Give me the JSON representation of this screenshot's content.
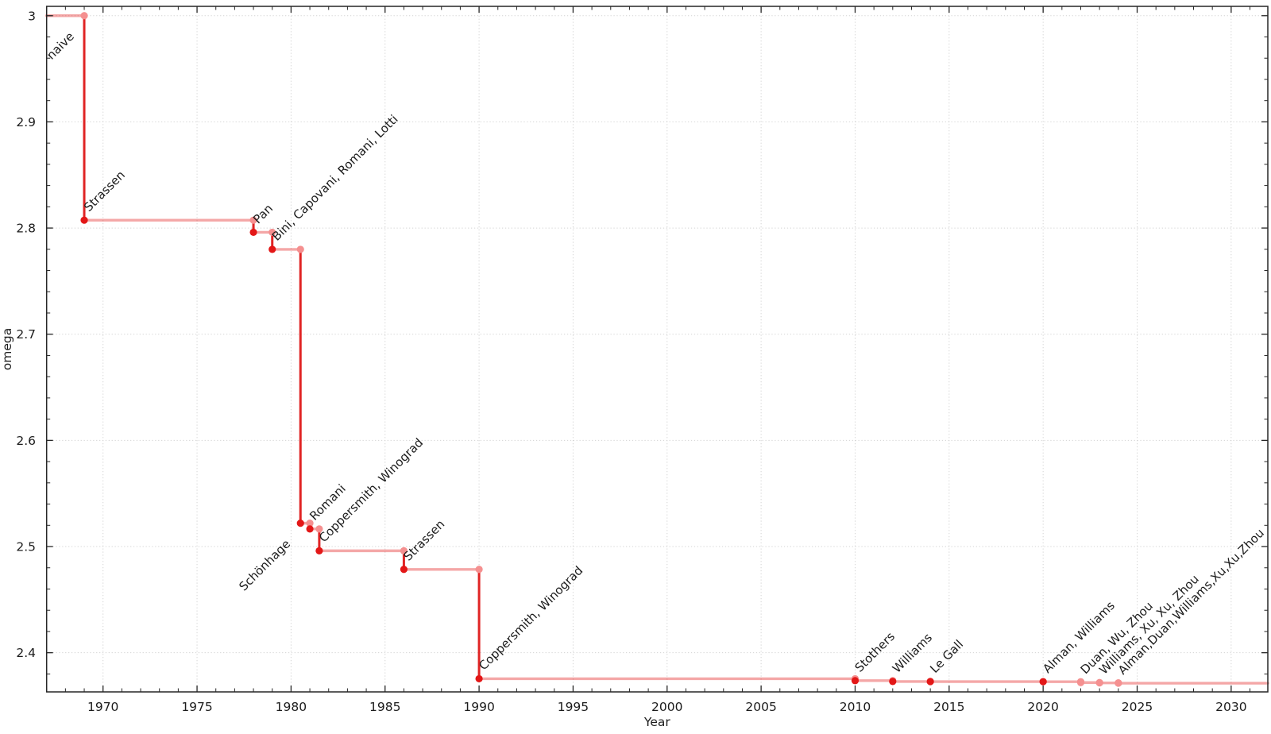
{
  "figure": {
    "xlabel": "Year",
    "ylabel": "omega"
  },
  "colors": {
    "plateau_line": "rgba(229,45,45,0.42)",
    "drop_line": "#e02424",
    "marker_dark": "#e31717",
    "marker_light": "#f59090",
    "label_dark": "#1c1c1c",
    "label_recent": "#a6a6a6",
    "grid": "#d4d4d4",
    "axis": "#262626"
  },
  "chart_data": {
    "type": "line",
    "step_mode": "post",
    "title": "",
    "xlabel": "Year",
    "ylabel": "omega",
    "xlim": [
      1967.0,
      2031.95
    ],
    "ylim": [
      2.3631,
      3.0088
    ],
    "grid": "dotted lines at major ticks, both axes",
    "legend": "none",
    "x_major_ticks": [
      1970,
      1975,
      1980,
      1985,
      1990,
      1995,
      2000,
      2005,
      2010,
      2015,
      2020,
      2025,
      2030
    ],
    "x_minor_step": 1,
    "y_major_ticks": [
      {
        "value": 3.0,
        "label": "3"
      },
      {
        "value": 2.9,
        "label": "2.9"
      },
      {
        "value": 2.8,
        "label": "2.8"
      },
      {
        "value": 2.7,
        "label": "2.7"
      },
      {
        "value": 2.6,
        "label": "2.6"
      },
      {
        "value": 2.5,
        "label": "2.5"
      },
      {
        "value": 2.4,
        "label": "2.4"
      }
    ],
    "y_minor_step": 0.02,
    "baseline": {
      "label": "naive",
      "omega": 3.0,
      "start_year": 1967.0,
      "end_year": 1969,
      "label_side": "below"
    },
    "discoveries": [
      {
        "label": "Strassen",
        "year": 1969,
        "omega": 2.8074,
        "recent": false,
        "label_side": "above"
      },
      {
        "label": "Pan",
        "year": 1978,
        "omega": 2.796,
        "recent": false,
        "label_side": "above"
      },
      {
        "label": "Bini, Capovani, Romani, Lotti",
        "year": 1979,
        "omega": 2.7799,
        "recent": false,
        "label_side": "above"
      },
      {
        "label": "Schönhage",
        "year": 1980.5,
        "omega": 2.522,
        "recent": false,
        "label_side": "below"
      },
      {
        "label": "Romani",
        "year": 1981,
        "omega": 2.5166,
        "recent": false,
        "label_side": "above"
      },
      {
        "label": "Coppersmith, Winograd",
        "year": 1981.5,
        "omega": 2.496,
        "recent": false,
        "label_side": "above"
      },
      {
        "label": "Strassen",
        "year": 1986,
        "omega": 2.4785,
        "recent": false,
        "label_side": "above"
      },
      {
        "label": "Coppersmith, Winograd",
        "year": 1990,
        "omega": 2.3755,
        "recent": false,
        "label_side": "above"
      },
      {
        "label": "Stothers",
        "year": 2010,
        "omega": 2.3737,
        "recent": false,
        "label_side": "above"
      },
      {
        "label": "Williams",
        "year": 2012,
        "omega": 2.3729,
        "recent": false,
        "label_side": "above"
      },
      {
        "label": "Le Gall",
        "year": 2014,
        "omega": 2.3728,
        "recent": false,
        "label_side": "above"
      },
      {
        "label": "Alman, Williams",
        "year": 2020,
        "omega": 2.3727,
        "recent": false,
        "label_side": "above"
      },
      {
        "label": "Duan, Wu, Zhou",
        "year": 2022,
        "omega": 2.3719,
        "recent": true,
        "label_side": "above"
      },
      {
        "label": "Williams, Xu, Xu, Zhou",
        "year": 2023,
        "omega": 2.3716,
        "recent": true,
        "label_side": "above"
      },
      {
        "label": "Alman,Duan,Williams,Xu,Xu,Zhou",
        "year": 2024,
        "omega": 2.3713,
        "recent": true,
        "label_side": "above"
      }
    ],
    "line_extends_to_year": 2031.95
  }
}
